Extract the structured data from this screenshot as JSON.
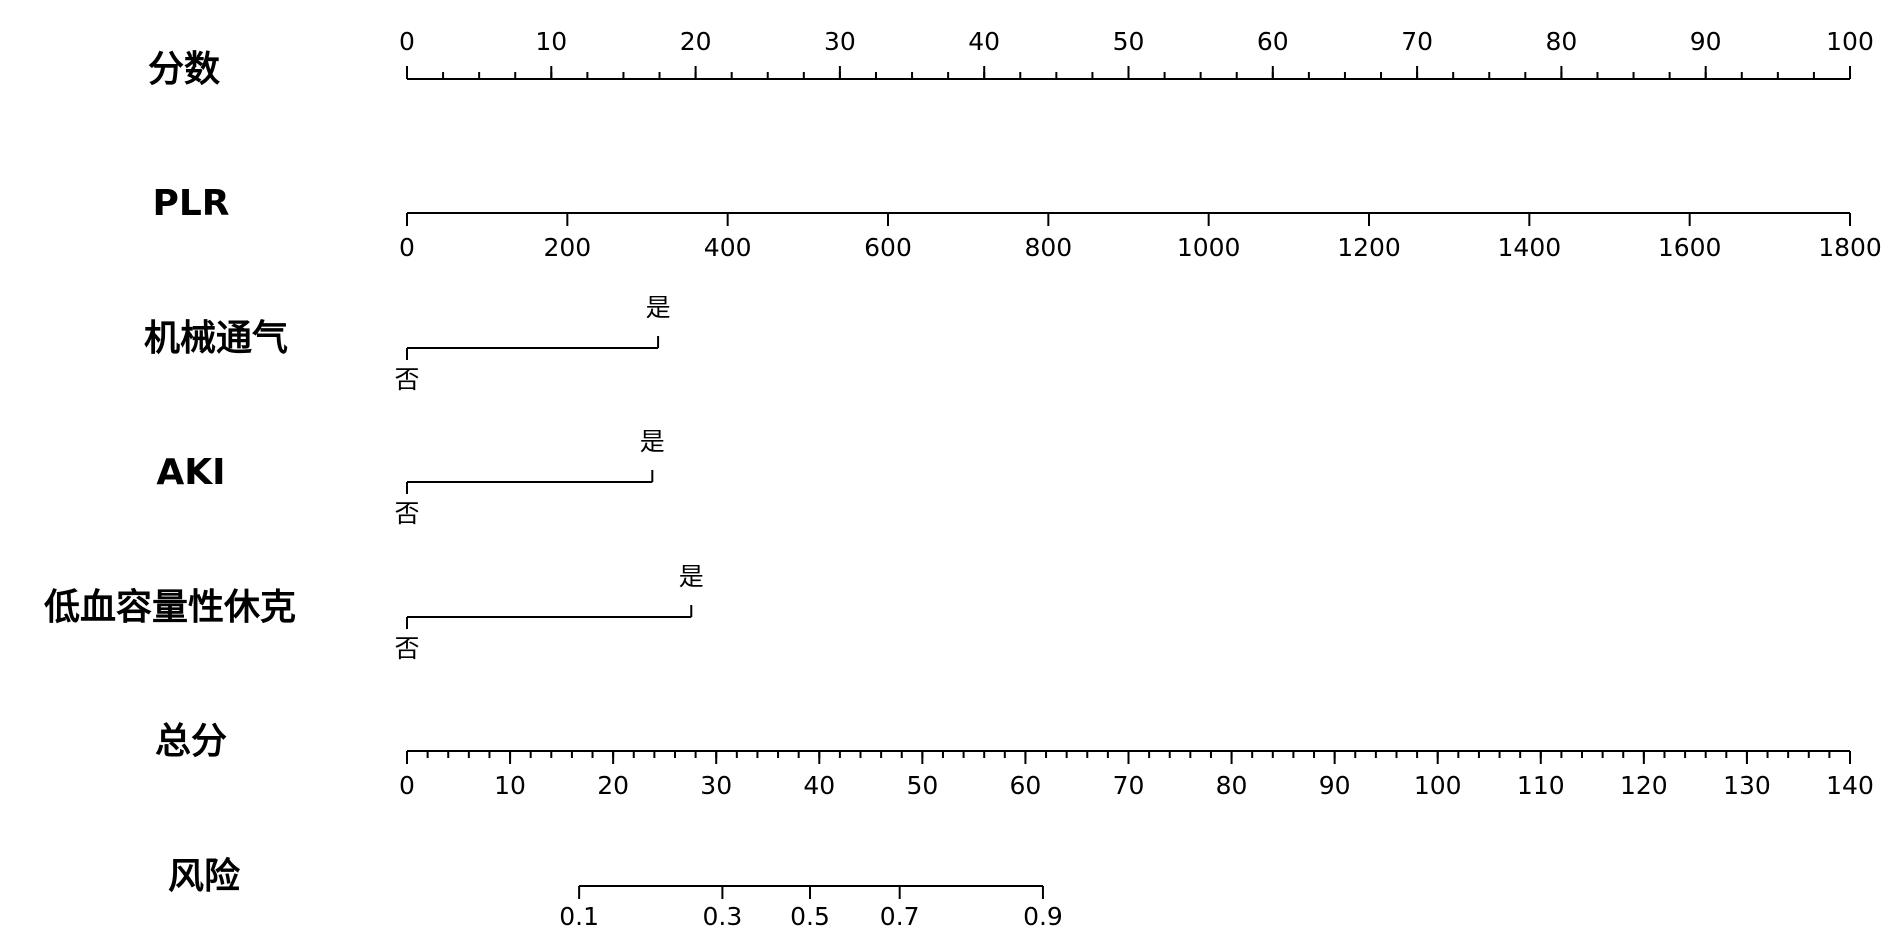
{
  "chart_data": {
    "type": "nomogram",
    "rows": [
      {
        "label": "分数",
        "kind": "points",
        "lim": [
          0,
          100
        ],
        "ticks": [
          0,
          10,
          20,
          30,
          40,
          50,
          60,
          70,
          80,
          90,
          100
        ],
        "minor_step": 2.5
      },
      {
        "label": "PLR",
        "kind": "continuous",
        "lim": [
          0,
          1800
        ],
        "points_lim": [
          0,
          100
        ],
        "ticks": [
          0,
          200,
          400,
          600,
          800,
          1000,
          1200,
          1400,
          1600,
          1800
        ]
      },
      {
        "label": "机械通气",
        "kind": "categorical",
        "categories": [
          "否",
          "是"
        ],
        "points": [
          0,
          17.4
        ]
      },
      {
        "label": "AKI",
        "kind": "categorical",
        "categories": [
          "否",
          "是"
        ],
        "points": [
          0,
          17.0
        ]
      },
      {
        "label": "低血容量性休克",
        "kind": "categorical",
        "categories": [
          "否",
          "是"
        ],
        "points": [
          0,
          19.7
        ]
      },
      {
        "label": "总分",
        "kind": "total",
        "lim": [
          0,
          140
        ],
        "ticks": [
          0,
          10,
          20,
          30,
          40,
          50,
          60,
          70,
          80,
          90,
          100,
          110,
          120,
          130,
          140
        ],
        "minor_step": 2
      },
      {
        "label": "风险",
        "kind": "risk",
        "ticks": [
          0.1,
          0.3,
          0.5,
          0.7,
          0.9
        ],
        "total_points": [
          16.7,
          30.6,
          39.1,
          47.8,
          61.7
        ]
      }
    ]
  }
}
